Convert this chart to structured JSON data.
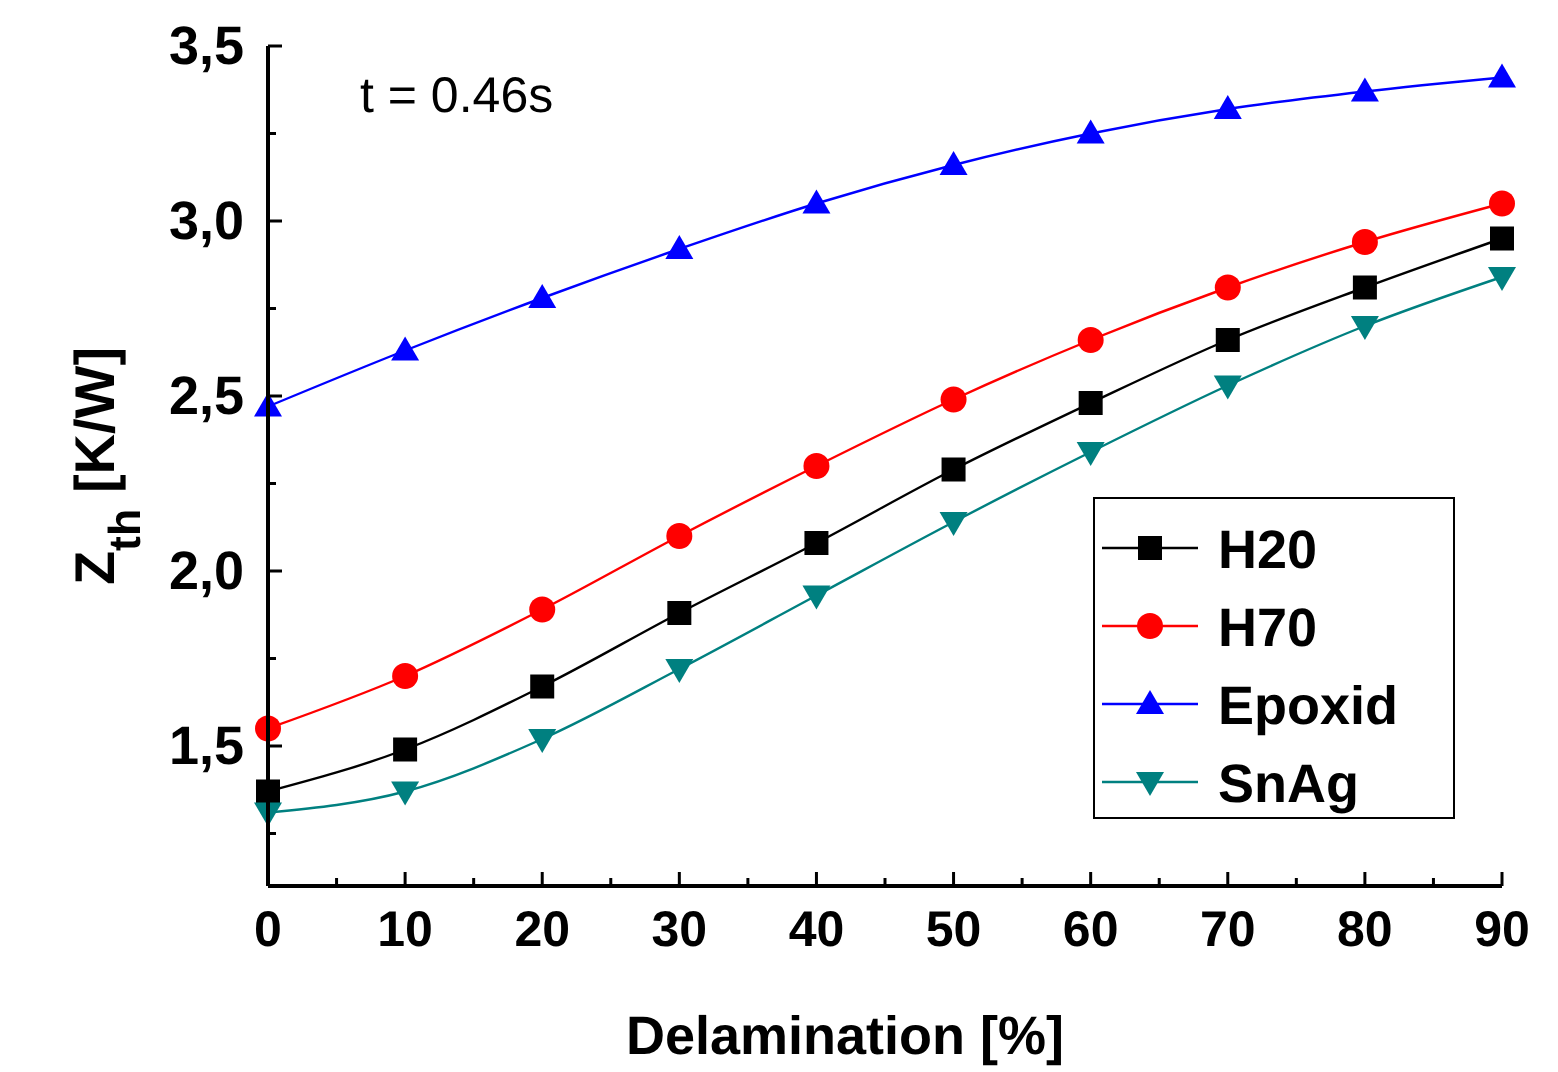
{
  "chart_data": {
    "type": "line",
    "annotations": [
      "t = 0.46s"
    ],
    "xlabel": "Delamination [%]",
    "ylabel": "Z$_{th}$ [K/W]",
    "x": [
      0,
      10,
      20,
      30,
      40,
      50,
      60,
      70,
      80,
      90
    ],
    "series": [
      {
        "name": "H20",
        "color": "#000000",
        "marker": "square",
        "values": [
          1.37,
          1.49,
          1.67,
          1.88,
          2.08,
          2.29,
          2.48,
          2.66,
          2.81,
          2.95
        ]
      },
      {
        "name": "H70",
        "color": "#ff0000",
        "marker": "circle",
        "values": [
          1.55,
          1.7,
          1.89,
          2.1,
          2.3,
          2.49,
          2.66,
          2.81,
          2.94,
          3.05
        ]
      },
      {
        "name": "Epoxid",
        "color": "#0000ff",
        "marker": "triangle",
        "values": [
          2.47,
          2.63,
          2.78,
          2.92,
          3.05,
          3.16,
          3.25,
          3.32,
          3.37,
          3.41
        ]
      },
      {
        "name": "SnAg",
        "color": "#008080",
        "marker": "triangle-down",
        "values": [
          1.31,
          1.37,
          1.52,
          1.72,
          1.93,
          2.14,
          2.34,
          2.53,
          2.7,
          2.84
        ]
      }
    ],
    "xlim": [
      0,
      90
    ],
    "xticks": [
      0,
      {
        "value": 5,
        "label": null
      },
      10,
      {
        "value": 15,
        "label": null
      },
      20,
      {
        "value": 25,
        "label": null
      },
      30,
      {
        "value": 35,
        "label": null
      },
      40,
      {
        "value": 45,
        "label": null
      },
      50,
      {
        "value": 55,
        "label": null
      },
      60,
      {
        "value": 65,
        "label": null
      },
      70,
      {
        "value": 75,
        "label": null
      },
      80,
      {
        "value": 85,
        "label": null
      },
      90
    ],
    "ylim": [
      1.1,
      3.5
    ],
    "yticks": [
      {
        "value": 1.25,
        "label": null
      },
      {
        "value": 1.5,
        "label": "1,5"
      },
      {
        "value": 1.75,
        "label": null
      },
      {
        "value": 2.0,
        "label": "2,0"
      },
      {
        "value": 2.25,
        "label": null
      },
      {
        "value": 2.5,
        "label": "2,5"
      },
      {
        "value": 2.75,
        "label": null
      },
      {
        "value": 3.0,
        "label": "3,0"
      },
      {
        "value": 3.25,
        "label": null
      },
      {
        "value": 3.5,
        "label": "3,5"
      }
    ],
    "grid": false,
    "legend": "bottom right"
  }
}
